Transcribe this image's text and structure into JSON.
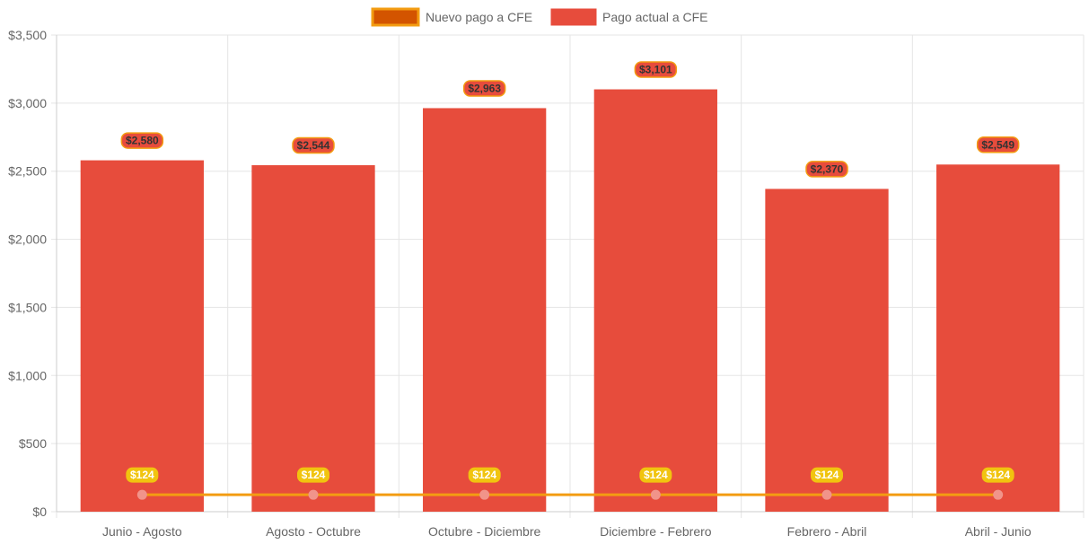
{
  "chart_data": {
    "type": "bar",
    "categories": [
      "Junio - Agosto",
      "Agosto - Octubre",
      "Octubre - Diciembre",
      "Diciembre - Febrero",
      "Febrero - Abril",
      "Abril - Junio"
    ],
    "series": [
      {
        "name": "Nuevo pago a CFE",
        "type": "line",
        "color": "#f39c12",
        "point_color": "#f1948a",
        "label_bg": "#f1c40f",
        "values": [
          124,
          124,
          124,
          124,
          124,
          124
        ],
        "data_labels": [
          "$124",
          "$124",
          "$124",
          "$124",
          "$124",
          "$124"
        ]
      },
      {
        "name": "Pago actual a CFE",
        "type": "bar",
        "color": "#e74c3c",
        "label_border": "#f39c12",
        "values": [
          2580,
          2544,
          2963,
          3101,
          2370,
          2549
        ],
        "data_labels": [
          "$2,580",
          "$2,544",
          "$2,963",
          "$3,101",
          "$2,370",
          "$2,549"
        ]
      }
    ],
    "ylim": [
      0,
      3500
    ],
    "y_ticks": [
      {
        "value": 0,
        "label": "$0"
      },
      {
        "value": 500,
        "label": "$500"
      },
      {
        "value": 1000,
        "label": "$1,000"
      },
      {
        "value": 1500,
        "label": "$1,500"
      },
      {
        "value": 2000,
        "label": "$2,000"
      },
      {
        "value": 2500,
        "label": "$2,500"
      },
      {
        "value": 3000,
        "label": "$3,000"
      },
      {
        "value": 3500,
        "label": "$3,500"
      }
    ],
    "grid": true,
    "legend_position": "top-center",
    "legend": [
      {
        "label": "Nuevo pago a CFE",
        "fill": "#d35400",
        "border": "#f39c12"
      },
      {
        "label": "Pago actual a CFE",
        "fill": "#e74c3c",
        "border": "#e74c3c"
      }
    ]
  }
}
